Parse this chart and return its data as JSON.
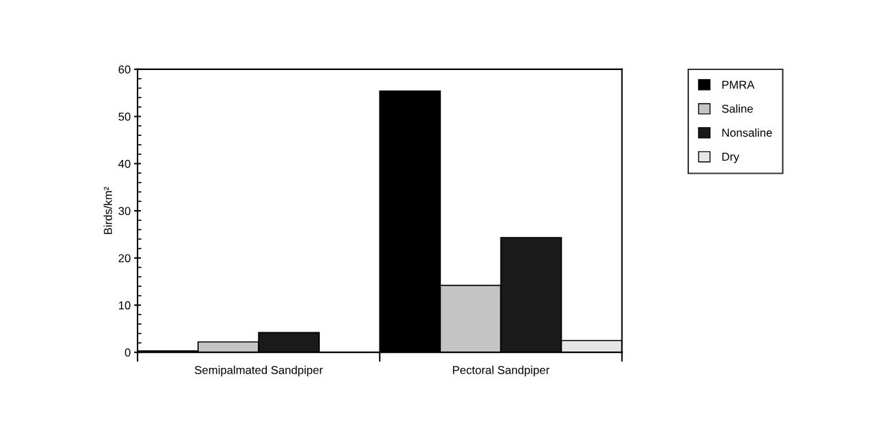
{
  "chart_data": {
    "type": "bar",
    "ylabel": "Birds/km²",
    "categories": [
      "Semipalmated Sandpiper",
      "Pectoral Sandpiper"
    ],
    "series": [
      {
        "name": "PMRA",
        "color": "#000000",
        "values": [
          0.3,
          55.4
        ]
      },
      {
        "name": "Saline",
        "color": "#c4c4c4",
        "values": [
          2.2,
          14.2
        ]
      },
      {
        "name": "Nonsaline",
        "color": "#1a1a1a",
        "values": [
          4.2,
          24.3
        ]
      },
      {
        "name": "Dry",
        "color": "#e6e6e6",
        "values": [
          null,
          2.5
        ]
      }
    ],
    "ylim": [
      0,
      60
    ],
    "yticks": [
      0,
      10,
      20,
      30,
      40,
      50,
      60
    ],
    "grid": false,
    "legend": "top right"
  }
}
